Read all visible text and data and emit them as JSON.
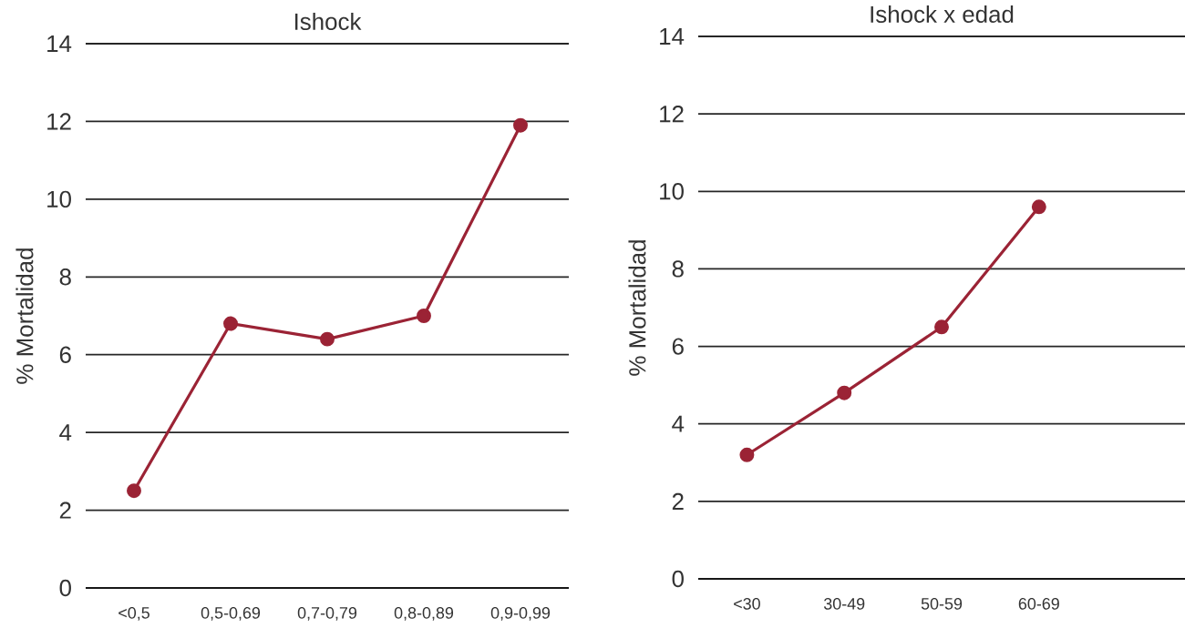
{
  "chart_data": [
    {
      "type": "line",
      "title": "Ishock",
      "ylabel": "% Mortalidad",
      "categories": [
        "<0,5",
        "0,5-0,69",
        "0,7-0,79",
        "0,8-0,89",
        "0,9-0,99"
      ],
      "values": [
        2.5,
        6.8,
        6.4,
        7.0,
        11.9
      ],
      "color": "#9b2335",
      "ylim": [
        0,
        14
      ],
      "yticks": [
        0,
        2,
        4,
        6,
        8,
        10,
        12,
        14
      ],
      "grid": "y",
      "marker": "circle",
      "line_style": "solid"
    },
    {
      "type": "line",
      "title": "Ishock x edad",
      "ylabel": "% Mortalidad",
      "categories": [
        "<30",
        "30-49",
        "50-59",
        "60-69",
        null
      ],
      "values": [
        3.2,
        4.8,
        6.5,
        9.6,
        null
      ],
      "color": "#9b2335",
      "ylim": [
        0,
        14
      ],
      "yticks": [
        0,
        2,
        4,
        6,
        8,
        10,
        12,
        14
      ],
      "grid": "y",
      "marker": "circle",
      "line_style": "solid"
    }
  ]
}
